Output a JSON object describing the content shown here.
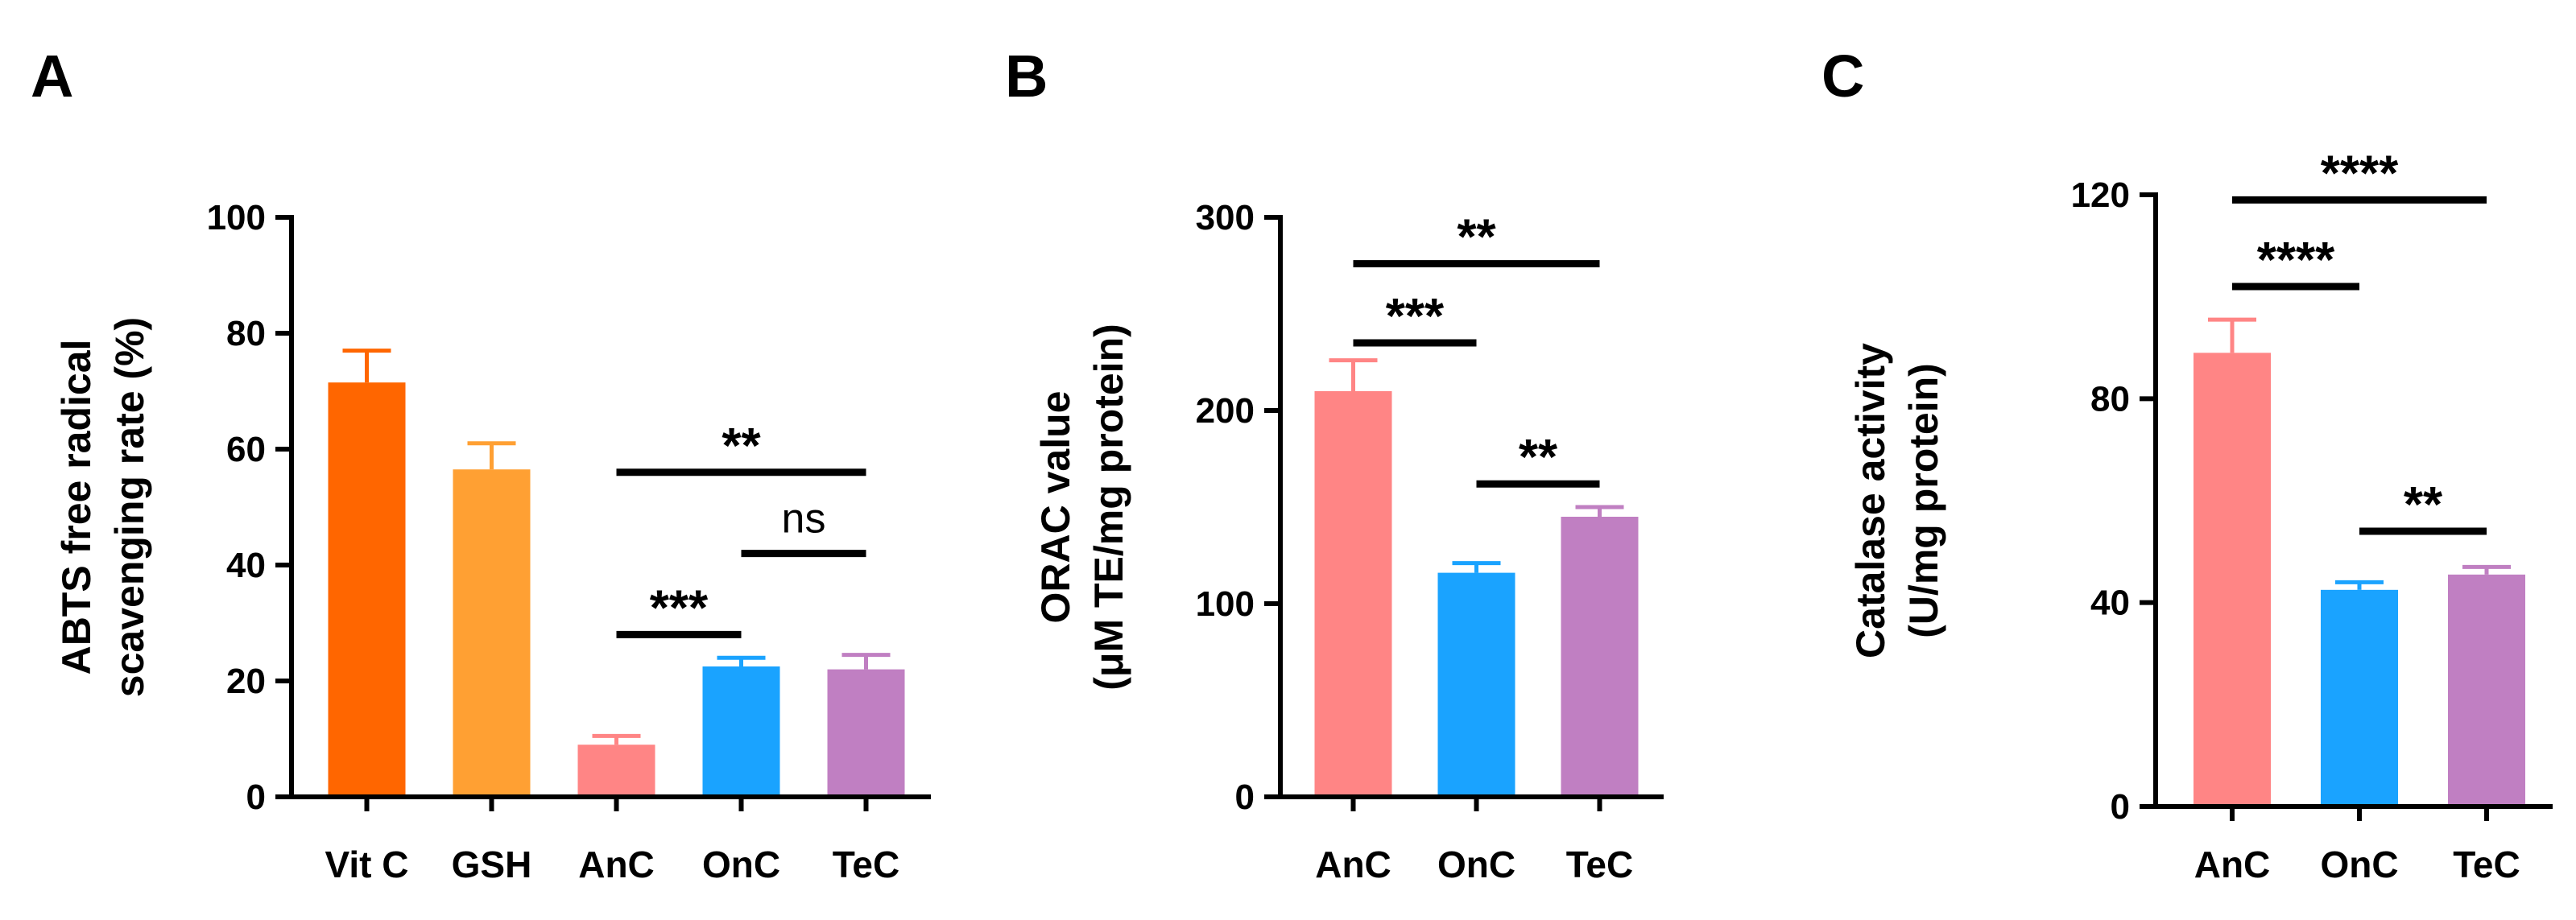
{
  "chart_data": [
    {
      "panel": "A",
      "type": "bar",
      "ylabel": [
        "ABTS free radical",
        "scavenging rate (%)"
      ],
      "ylim": [
        0,
        100
      ],
      "yticks": [
        "0",
        "20",
        "40",
        "60",
        "80",
        "100"
      ],
      "categories": [
        "Vit C",
        "GSH",
        "AnC",
        "OnC",
        "TeC"
      ],
      "values": [
        71.5,
        56.5,
        9,
        22.5,
        22
      ],
      "errors": [
        5.5,
        4.5,
        1.5,
        1.5,
        2.5
      ],
      "colors": [
        "#ff6600",
        "#ffa033",
        "#ff8585",
        "#1aa3ff",
        "#c07fc2"
      ],
      "significance": [
        {
          "from": 2,
          "to": 3,
          "level": 28,
          "label": "***"
        },
        {
          "from": 3,
          "to": 4,
          "level": 42,
          "label": "ns"
        },
        {
          "from": 2,
          "to": 4,
          "level": 56,
          "label": "**"
        }
      ]
    },
    {
      "panel": "B",
      "type": "bar",
      "ylabel": [
        "ORAC value",
        "(μM TE/mg protein)"
      ],
      "ylim": [
        0,
        300
      ],
      "yticks": [
        "0",
        "100",
        "200",
        "300"
      ],
      "categories": [
        "AnC",
        "OnC",
        "TeC"
      ],
      "values": [
        210,
        116,
        145
      ],
      "errors": [
        16,
        5,
        5
      ],
      "colors": [
        "#ff8585",
        "#1aa3ff",
        "#c07fc2"
      ],
      "significance": [
        {
          "from": 0,
          "to": 1,
          "level": 235,
          "label": "***"
        },
        {
          "from": 1,
          "to": 2,
          "level": 162,
          "label": "**"
        },
        {
          "from": 0,
          "to": 2,
          "level": 276,
          "label": "**"
        }
      ]
    },
    {
      "panel": "C",
      "type": "bar",
      "ylabel": [
        "Catalase activity",
        "(U/mg protein)"
      ],
      "ylim": [
        0,
        120
      ],
      "yticks": [
        "0",
        "40",
        "80",
        "120"
      ],
      "categories": [
        "AnC",
        "OnC",
        "TeC"
      ],
      "values": [
        89,
        42.5,
        45.5
      ],
      "errors": [
        6.5,
        1.5,
        1.5
      ],
      "colors": [
        "#ff8585",
        "#1aa3ff",
        "#c07fc2"
      ],
      "significance": [
        {
          "from": 0,
          "to": 1,
          "level": 102,
          "label": "****"
        },
        {
          "from": 0,
          "to": 2,
          "level": 119,
          "label": "****"
        },
        {
          "from": 1,
          "to": 2,
          "level": 54,
          "label": "**"
        }
      ]
    }
  ]
}
